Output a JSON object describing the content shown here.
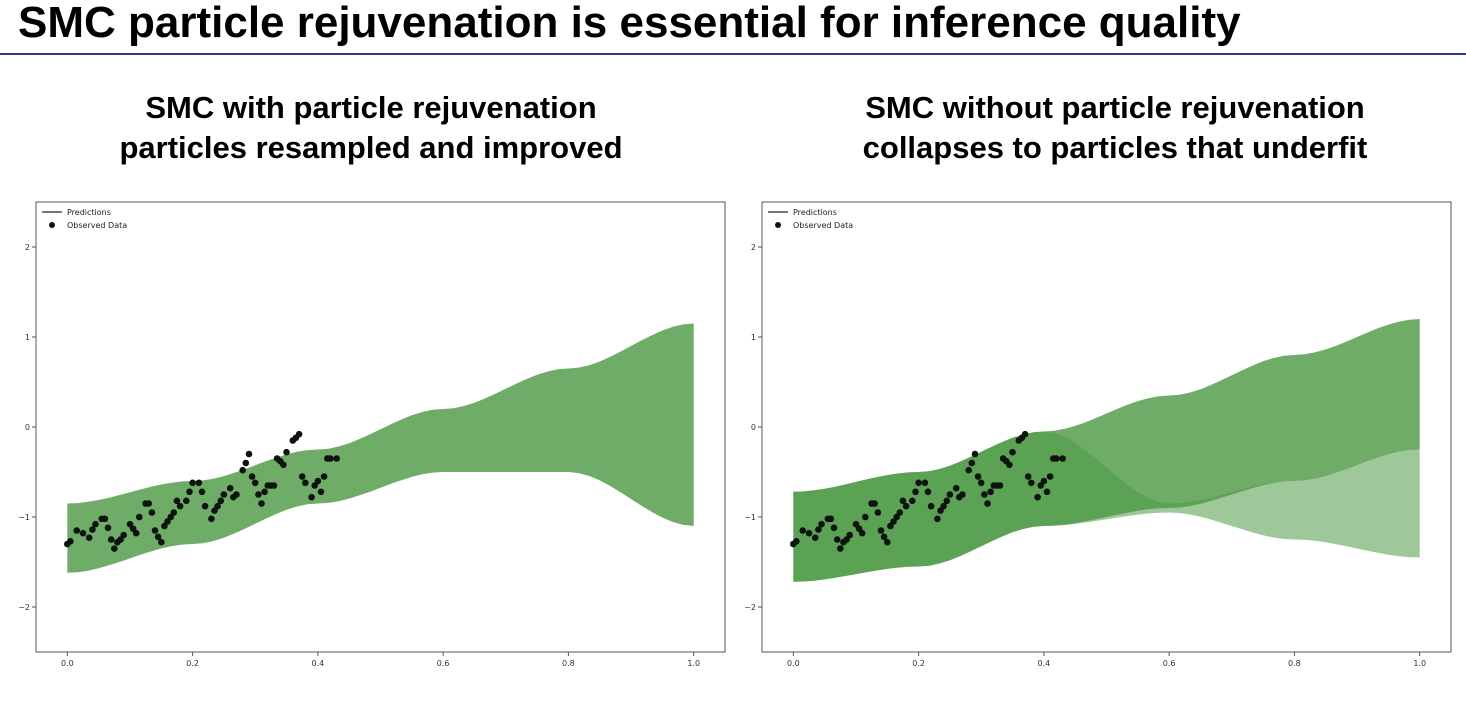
{
  "slide": {
    "title": "SMC particle rejuvenation is essential for inference quality"
  },
  "panels": [
    {
      "title_line1": "SMC with particle rejuvenation",
      "title_line2": "particles resampled and improved"
    },
    {
      "title_line1": "SMC without particle rejuvenation",
      "title_line2": "collapses to particles that underfit"
    }
  ],
  "colors": {
    "band": "#4e9a45",
    "band_light": "#c9dcc5",
    "points": "#0d140d",
    "title_rule": "#2b3a7a",
    "prediction_line": "#4a4a4a"
  },
  "chart_data": [
    {
      "type": "line",
      "legend": [
        "Predictions",
        "Observed Data"
      ],
      "legend_position": "top-left",
      "grid": false,
      "xlim": [
        -0.05,
        1.05
      ],
      "ylim": [
        -2.5,
        2.5
      ],
      "xticks": [
        0.0,
        0.2,
        0.4,
        0.6,
        0.8,
        1.0
      ],
      "xtick_labels": [
        "0.0",
        "0.2",
        "0.4",
        "0.6",
        "0.8",
        "1.0"
      ],
      "yticks": [
        2,
        1,
        0,
        -1,
        -2
      ],
      "ytick_labels": [
        "2",
        "1",
        "0",
        "−1",
        "−2"
      ],
      "series": [
        {
          "name": "Observed Data",
          "type": "scatter",
          "x": [
            0.0,
            0.005,
            0.015,
            0.025,
            0.035,
            0.04,
            0.045,
            0.055,
            0.06,
            0.065,
            0.07,
            0.075,
            0.08,
            0.085,
            0.09,
            0.1,
            0.105,
            0.11,
            0.115,
            0.125,
            0.13,
            0.135,
            0.14,
            0.145,
            0.15,
            0.155,
            0.16,
            0.165,
            0.17,
            0.175,
            0.18,
            0.19,
            0.195,
            0.2,
            0.21,
            0.215,
            0.22,
            0.23,
            0.235,
            0.24,
            0.245,
            0.25,
            0.26,
            0.265,
            0.27,
            0.28,
            0.285,
            0.29,
            0.295,
            0.3,
            0.305,
            0.31,
            0.315,
            0.32,
            0.325,
            0.33,
            0.335,
            0.34,
            0.345,
            0.35,
            0.36,
            0.365,
            0.37,
            0.375,
            0.38,
            0.39,
            0.395,
            0.4,
            0.405,
            0.41,
            0.415,
            0.42,
            0.43
          ],
          "y": [
            -1.3,
            -1.27,
            -1.15,
            -1.18,
            -1.23,
            -1.14,
            -1.08,
            -1.02,
            -1.02,
            -1.12,
            -1.25,
            -1.35,
            -1.28,
            -1.25,
            -1.2,
            -1.08,
            -1.13,
            -1.18,
            -1.0,
            -0.85,
            -0.85,
            -0.95,
            -1.15,
            -1.22,
            -1.28,
            -1.1,
            -1.05,
            -1.0,
            -0.95,
            -0.82,
            -0.88,
            -0.82,
            -0.72,
            -0.62,
            -0.62,
            -0.72,
            -0.88,
            -1.02,
            -0.93,
            -0.88,
            -0.82,
            -0.75,
            -0.68,
            -0.78,
            -0.75,
            -0.48,
            -0.4,
            -0.3,
            -0.55,
            -0.62,
            -0.75,
            -0.85,
            -0.72,
            -0.65,
            -0.65,
            -0.65,
            -0.35,
            -0.38,
            -0.42,
            -0.28,
            -0.15,
            -0.12,
            -0.08,
            -0.55,
            -0.62,
            -0.78,
            -0.65,
            -0.6,
            -0.72,
            -0.55,
            -0.35,
            -0.35,
            -0.35
          ]
        },
        {
          "name": "Predictions",
          "type": "band",
          "x": [
            0.0,
            0.2,
            0.4,
            0.6,
            0.8,
            1.0
          ],
          "upper": [
            -0.85,
            -0.6,
            -0.25,
            0.2,
            0.65,
            1.15
          ],
          "lower": [
            -1.62,
            -1.3,
            -0.85,
            -0.5,
            -0.5,
            -1.1
          ]
        }
      ]
    },
    {
      "type": "line",
      "legend": [
        "Predictions",
        "Observed Data"
      ],
      "legend_position": "top-left",
      "grid": false,
      "xlim": [
        -0.05,
        1.05
      ],
      "ylim": [
        -2.5,
        2.5
      ],
      "xticks": [
        0.0,
        0.2,
        0.4,
        0.6,
        0.8,
        1.0
      ],
      "xtick_labels": [
        "0.0",
        "0.2",
        "0.4",
        "0.6",
        "0.8",
        "1.0"
      ],
      "yticks": [
        2,
        1,
        0,
        -1,
        -2
      ],
      "ytick_labels": [
        "2",
        "1",
        "0",
        "−1",
        "−2"
      ],
      "series": [
        {
          "name": "Observed Data",
          "type": "scatter",
          "x": [
            0.0,
            0.005,
            0.015,
            0.025,
            0.035,
            0.04,
            0.045,
            0.055,
            0.06,
            0.065,
            0.07,
            0.075,
            0.08,
            0.085,
            0.09,
            0.1,
            0.105,
            0.11,
            0.115,
            0.125,
            0.13,
            0.135,
            0.14,
            0.145,
            0.15,
            0.155,
            0.16,
            0.165,
            0.17,
            0.175,
            0.18,
            0.19,
            0.195,
            0.2,
            0.21,
            0.215,
            0.22,
            0.23,
            0.235,
            0.24,
            0.245,
            0.25,
            0.26,
            0.265,
            0.27,
            0.28,
            0.285,
            0.29,
            0.295,
            0.3,
            0.305,
            0.31,
            0.315,
            0.32,
            0.325,
            0.33,
            0.335,
            0.34,
            0.345,
            0.35,
            0.36,
            0.365,
            0.37,
            0.375,
            0.38,
            0.39,
            0.395,
            0.4,
            0.405,
            0.41,
            0.415,
            0.42,
            0.43
          ],
          "y": [
            -1.3,
            -1.27,
            -1.15,
            -1.18,
            -1.23,
            -1.14,
            -1.08,
            -1.02,
            -1.02,
            -1.12,
            -1.25,
            -1.35,
            -1.28,
            -1.25,
            -1.2,
            -1.08,
            -1.13,
            -1.18,
            -1.0,
            -0.85,
            -0.85,
            -0.95,
            -1.15,
            -1.22,
            -1.28,
            -1.1,
            -1.05,
            -1.0,
            -0.95,
            -0.82,
            -0.88,
            -0.82,
            -0.72,
            -0.62,
            -0.62,
            -0.72,
            -0.88,
            -1.02,
            -0.93,
            -0.88,
            -0.82,
            -0.75,
            -0.68,
            -0.78,
            -0.75,
            -0.48,
            -0.4,
            -0.3,
            -0.55,
            -0.62,
            -0.75,
            -0.85,
            -0.72,
            -0.65,
            -0.65,
            -0.65,
            -0.35,
            -0.38,
            -0.42,
            -0.28,
            -0.15,
            -0.12,
            -0.08,
            -0.55,
            -0.62,
            -0.78,
            -0.65,
            -0.6,
            -0.72,
            -0.55,
            -0.35,
            -0.35,
            -0.35
          ]
        },
        {
          "name": "Predictions",
          "type": "band",
          "x": [
            0.0,
            0.2,
            0.4,
            0.6,
            0.8,
            1.0
          ],
          "upper": [
            -0.72,
            -0.5,
            -0.05,
            0.35,
            0.8,
            1.2
          ],
          "lower": [
            -1.72,
            -1.55,
            -1.1,
            -0.9,
            -0.6,
            -0.25
          ]
        },
        {
          "name": "Predictions",
          "type": "band",
          "x": [
            0.0,
            0.2,
            0.4,
            0.6,
            0.8,
            1.0
          ],
          "upper": [
            -0.72,
            -0.5,
            -0.05,
            -0.85,
            -0.6,
            -0.25
          ],
          "lower": [
            -1.72,
            -1.55,
            -1.1,
            -0.95,
            -1.25,
            -1.45
          ]
        }
      ]
    }
  ]
}
